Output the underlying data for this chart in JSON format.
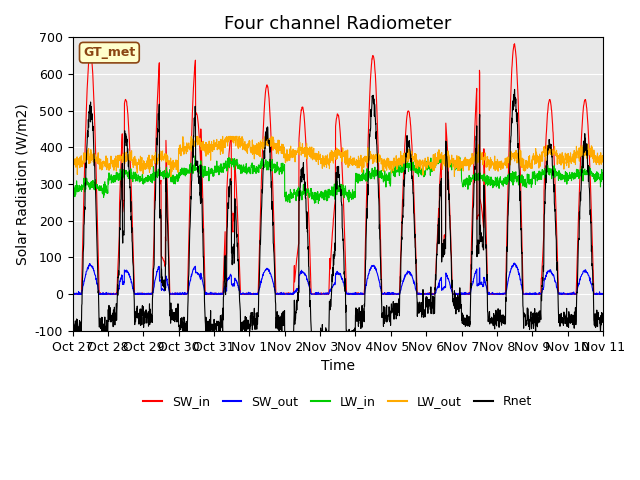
{
  "title": "Four channel Radiometer",
  "xlabel": "Time",
  "ylabel": "Solar Radiation (W/m2)",
  "ylim": [
    -100,
    700
  ],
  "yticks": [
    -100,
    0,
    100,
    200,
    300,
    400,
    500,
    600,
    700
  ],
  "x_tick_labels": [
    "Oct 27",
    "Oct 28",
    "Oct 29",
    "Oct 30",
    "Oct 31",
    "Nov 1",
    "Nov 2",
    "Nov 3",
    "Nov 4",
    "Nov 5",
    "Nov 6",
    "Nov 7",
    "Nov 8",
    "Nov 9",
    "Nov 10",
    "Nov 11"
  ],
  "legend_labels": [
    "SW_in",
    "SW_out",
    "LW_in",
    "LW_out",
    "Rnet"
  ],
  "legend_colors": [
    "#ff0000",
    "#0000ff",
    "#00cc00",
    "#ffaa00",
    "#000000"
  ],
  "station_label": "GT_met",
  "station_label_color": "#8B4513",
  "station_bg_color": "#ffffcc",
  "bg_color": "#e8e8e8",
  "num_days": 15,
  "n_points_per_day": 144,
  "SW_in_color": "#ff0000",
  "SW_out_color": "#0000ff",
  "LW_in_color": "#00cc00",
  "LW_out_color": "#ffaa00",
  "Rnet_color": "#000000",
  "title_fontsize": 13,
  "label_fontsize": 10,
  "tick_fontsize": 9,
  "day_peaks": [
    660,
    530,
    660,
    645,
    430,
    570,
    510,
    490,
    650,
    500,
    500,
    610,
    680,
    530,
    530
  ],
  "day_lw_offsets": [
    0,
    30,
    30,
    45,
    55,
    55,
    -20,
    -15,
    30,
    50,
    65,
    20,
    20,
    35,
    35
  ],
  "day_lw_out_offsets": [
    0,
    0,
    0,
    40,
    50,
    40,
    20,
    10,
    0,
    0,
    0,
    0,
    0,
    15,
    15
  ]
}
